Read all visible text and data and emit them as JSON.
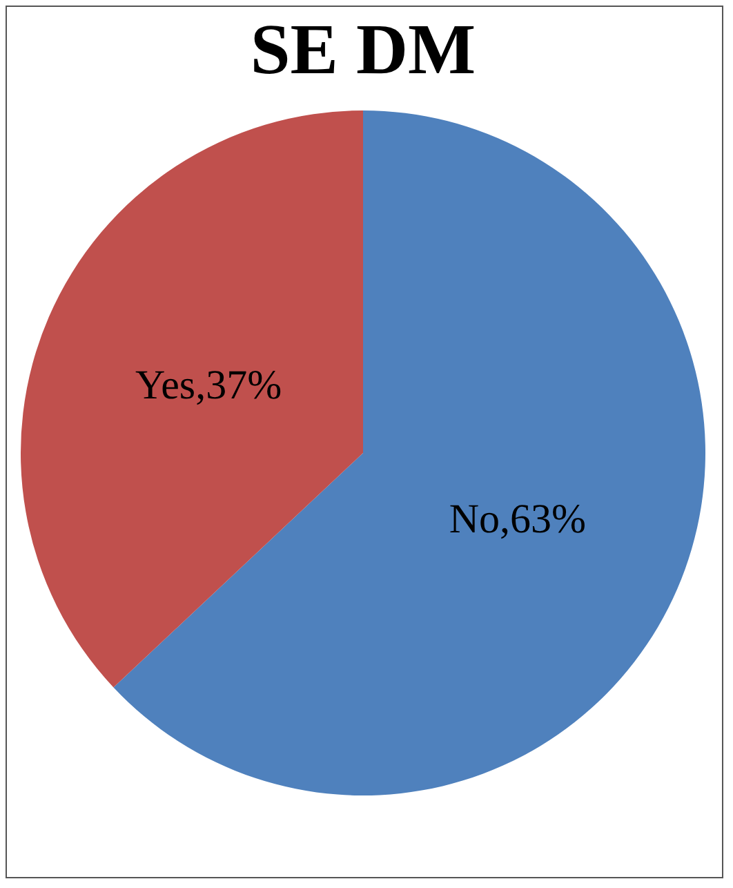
{
  "chart_data": {
    "type": "pie",
    "title": "SE DM",
    "categories": [
      "No",
      "Yes"
    ],
    "values": [
      63,
      37
    ],
    "colors": [
      "#4f81bd",
      "#c0504d"
    ],
    "value_labels": [
      "63%",
      "37%"
    ],
    "legend": false
  }
}
